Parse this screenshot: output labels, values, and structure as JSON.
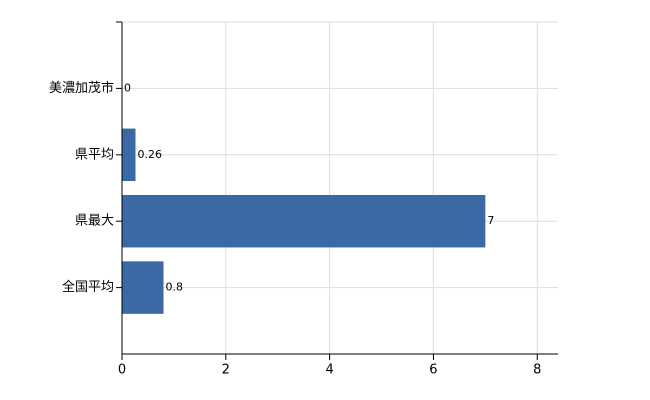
{
  "chart_data": {
    "type": "hbar",
    "categories": [
      "美濃加茂市",
      "県平均",
      "県最大",
      "全国平均"
    ],
    "values": [
      0,
      0.26,
      7,
      0.8
    ],
    "color": "#3b69a6",
    "xlim": [
      0,
      8.4
    ],
    "xticks": [
      0,
      2,
      4,
      6,
      8
    ],
    "grid": true
  }
}
